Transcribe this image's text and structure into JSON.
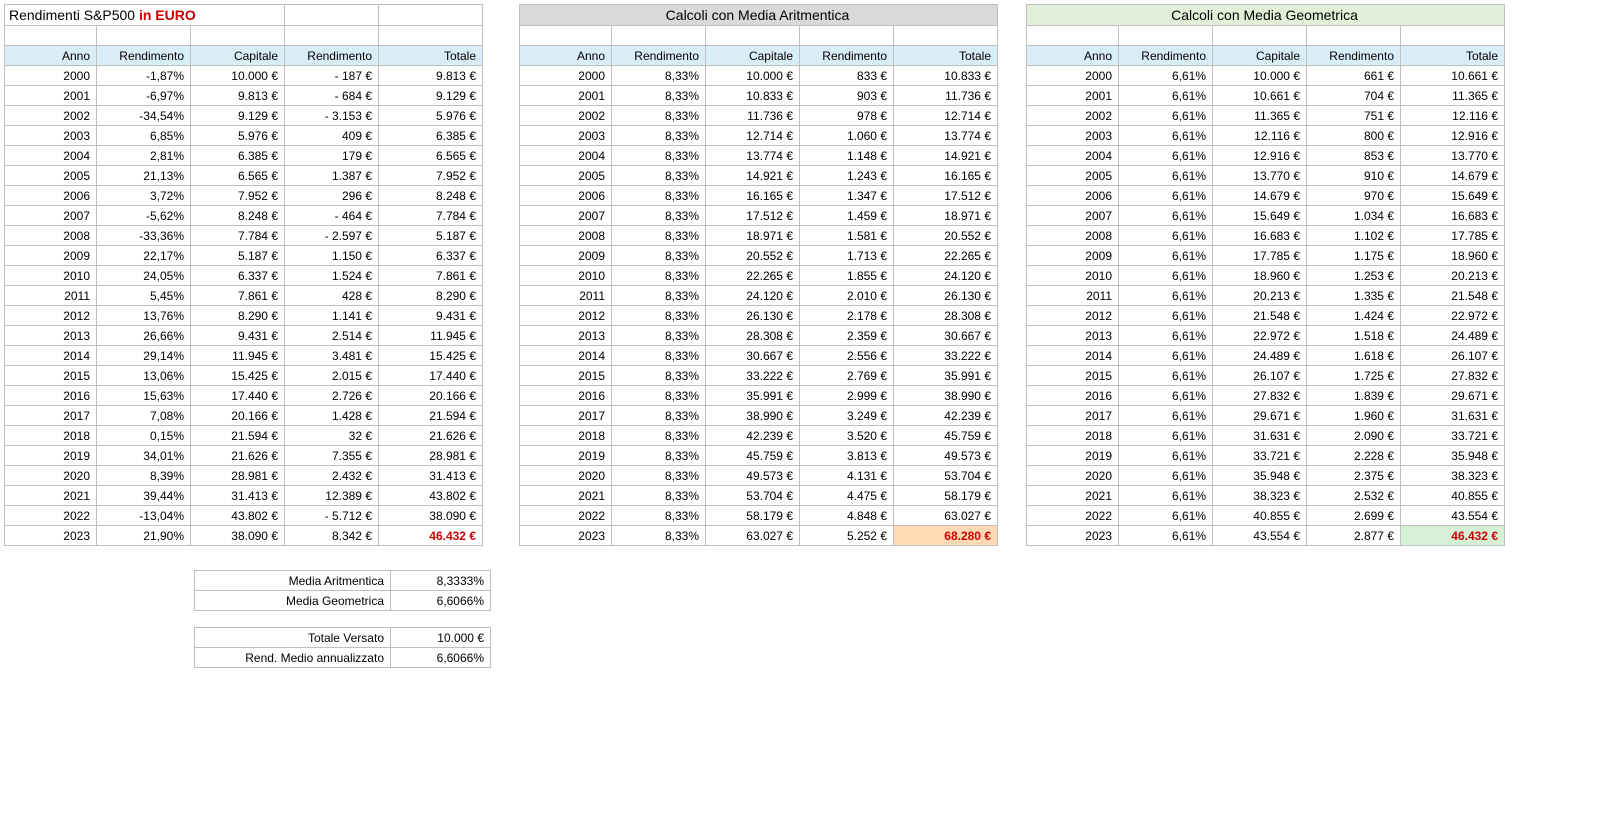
{
  "title_prefix": "Rendimenti S&P500 ",
  "title_suffix": "in EURO",
  "section_arit": "Calcoli con Media Aritmentica",
  "section_geo": "Calcoli con Media Geometrica",
  "columns": {
    "anno": "Anno",
    "rendimento": "Rendimento",
    "capitale": "Capitale",
    "rendimento2": "Rendimento",
    "totale": "Totale"
  },
  "table_real": {
    "final_highlight": "hl-red",
    "rows": [
      {
        "anno": "2000",
        "rend": "-1,87%",
        "cap": "10.000 €",
        "val": "-       187 €",
        "tot": "9.813 €"
      },
      {
        "anno": "2001",
        "rend": "-6,97%",
        "cap": "9.813 €",
        "val": "-       684 €",
        "tot": "9.129 €"
      },
      {
        "anno": "2002",
        "rend": "-34,54%",
        "cap": "9.129 €",
        "val": "-    3.153 €",
        "tot": "5.976 €"
      },
      {
        "anno": "2003",
        "rend": "6,85%",
        "cap": "5.976 €",
        "val": "409 €",
        "tot": "6.385 €"
      },
      {
        "anno": "2004",
        "rend": "2,81%",
        "cap": "6.385 €",
        "val": "179 €",
        "tot": "6.565 €"
      },
      {
        "anno": "2005",
        "rend": "21,13%",
        "cap": "6.565 €",
        "val": "1.387 €",
        "tot": "7.952 €"
      },
      {
        "anno": "2006",
        "rend": "3,72%",
        "cap": "7.952 €",
        "val": "296 €",
        "tot": "8.248 €"
      },
      {
        "anno": "2007",
        "rend": "-5,62%",
        "cap": "8.248 €",
        "val": "-       464 €",
        "tot": "7.784 €"
      },
      {
        "anno": "2008",
        "rend": "-33,36%",
        "cap": "7.784 €",
        "val": "-    2.597 €",
        "tot": "5.187 €"
      },
      {
        "anno": "2009",
        "rend": "22,17%",
        "cap": "5.187 €",
        "val": "1.150 €",
        "tot": "6.337 €"
      },
      {
        "anno": "2010",
        "rend": "24,05%",
        "cap": "6.337 €",
        "val": "1.524 €",
        "tot": "7.861 €"
      },
      {
        "anno": "2011",
        "rend": "5,45%",
        "cap": "7.861 €",
        "val": "428 €",
        "tot": "8.290 €"
      },
      {
        "anno": "2012",
        "rend": "13,76%",
        "cap": "8.290 €",
        "val": "1.141 €",
        "tot": "9.431 €"
      },
      {
        "anno": "2013",
        "rend": "26,66%",
        "cap": "9.431 €",
        "val": "2.514 €",
        "tot": "11.945 €"
      },
      {
        "anno": "2014",
        "rend": "29,14%",
        "cap": "11.945 €",
        "val": "3.481 €",
        "tot": "15.425 €"
      },
      {
        "anno": "2015",
        "rend": "13,06%",
        "cap": "15.425 €",
        "val": "2.015 €",
        "tot": "17.440 €"
      },
      {
        "anno": "2016",
        "rend": "15,63%",
        "cap": "17.440 €",
        "val": "2.726 €",
        "tot": "20.166 €"
      },
      {
        "anno": "2017",
        "rend": "7,08%",
        "cap": "20.166 €",
        "val": "1.428 €",
        "tot": "21.594 €"
      },
      {
        "anno": "2018",
        "rend": "0,15%",
        "cap": "21.594 €",
        "val": "32 €",
        "tot": "21.626 €"
      },
      {
        "anno": "2019",
        "rend": "34,01%",
        "cap": "21.626 €",
        "val": "7.355 €",
        "tot": "28.981 €"
      },
      {
        "anno": "2020",
        "rend": "8,39%",
        "cap": "28.981 €",
        "val": "2.432 €",
        "tot": "31.413 €"
      },
      {
        "anno": "2021",
        "rend": "39,44%",
        "cap": "31.413 €",
        "val": "12.389 €",
        "tot": "43.802 €"
      },
      {
        "anno": "2022",
        "rend": "-13,04%",
        "cap": "43.802 €",
        "val": "-    5.712 €",
        "tot": "38.090 €"
      },
      {
        "anno": "2023",
        "rend": "21,90%",
        "cap": "38.090 €",
        "val": "8.342 €",
        "tot": "46.432 €"
      }
    ]
  },
  "table_arit": {
    "final_highlight": "hl-orange",
    "rows": [
      {
        "anno": "2000",
        "rend": "8,33%",
        "cap": "10.000 €",
        "val": "833 €",
        "tot": "10.833 €"
      },
      {
        "anno": "2001",
        "rend": "8,33%",
        "cap": "10.833 €",
        "val": "903 €",
        "tot": "11.736 €"
      },
      {
        "anno": "2002",
        "rend": "8,33%",
        "cap": "11.736 €",
        "val": "978 €",
        "tot": "12.714 €"
      },
      {
        "anno": "2003",
        "rend": "8,33%",
        "cap": "12.714 €",
        "val": "1.060 €",
        "tot": "13.774 €"
      },
      {
        "anno": "2004",
        "rend": "8,33%",
        "cap": "13.774 €",
        "val": "1.148 €",
        "tot": "14.921 €"
      },
      {
        "anno": "2005",
        "rend": "8,33%",
        "cap": "14.921 €",
        "val": "1.243 €",
        "tot": "16.165 €"
      },
      {
        "anno": "2006",
        "rend": "8,33%",
        "cap": "16.165 €",
        "val": "1.347 €",
        "tot": "17.512 €"
      },
      {
        "anno": "2007",
        "rend": "8,33%",
        "cap": "17.512 €",
        "val": "1.459 €",
        "tot": "18.971 €"
      },
      {
        "anno": "2008",
        "rend": "8,33%",
        "cap": "18.971 €",
        "val": "1.581 €",
        "tot": "20.552 €"
      },
      {
        "anno": "2009",
        "rend": "8,33%",
        "cap": "20.552 €",
        "val": "1.713 €",
        "tot": "22.265 €"
      },
      {
        "anno": "2010",
        "rend": "8,33%",
        "cap": "22.265 €",
        "val": "1.855 €",
        "tot": "24.120 €"
      },
      {
        "anno": "2011",
        "rend": "8,33%",
        "cap": "24.120 €",
        "val": "2.010 €",
        "tot": "26.130 €"
      },
      {
        "anno": "2012",
        "rend": "8,33%",
        "cap": "26.130 €",
        "val": "2.178 €",
        "tot": "28.308 €"
      },
      {
        "anno": "2013",
        "rend": "8,33%",
        "cap": "28.308 €",
        "val": "2.359 €",
        "tot": "30.667 €"
      },
      {
        "anno": "2014",
        "rend": "8,33%",
        "cap": "30.667 €",
        "val": "2.556 €",
        "tot": "33.222 €"
      },
      {
        "anno": "2015",
        "rend": "8,33%",
        "cap": "33.222 €",
        "val": "2.769 €",
        "tot": "35.991 €"
      },
      {
        "anno": "2016",
        "rend": "8,33%",
        "cap": "35.991 €",
        "val": "2.999 €",
        "tot": "38.990 €"
      },
      {
        "anno": "2017",
        "rend": "8,33%",
        "cap": "38.990 €",
        "val": "3.249 €",
        "tot": "42.239 €"
      },
      {
        "anno": "2018",
        "rend": "8,33%",
        "cap": "42.239 €",
        "val": "3.520 €",
        "tot": "45.759 €"
      },
      {
        "anno": "2019",
        "rend": "8,33%",
        "cap": "45.759 €",
        "val": "3.813 €",
        "tot": "49.573 €"
      },
      {
        "anno": "2020",
        "rend": "8,33%",
        "cap": "49.573 €",
        "val": "4.131 €",
        "tot": "53.704 €"
      },
      {
        "anno": "2021",
        "rend": "8,33%",
        "cap": "53.704 €",
        "val": "4.475 €",
        "tot": "58.179 €"
      },
      {
        "anno": "2022",
        "rend": "8,33%",
        "cap": "58.179 €",
        "val": "4.848 €",
        "tot": "63.027 €"
      },
      {
        "anno": "2023",
        "rend": "8,33%",
        "cap": "63.027 €",
        "val": "5.252 €",
        "tot": "68.280 €"
      }
    ]
  },
  "table_geo": {
    "final_highlight": "hl-green",
    "rows": [
      {
        "anno": "2000",
        "rend": "6,61%",
        "cap": "10.000 €",
        "val": "661 €",
        "tot": "10.661 €"
      },
      {
        "anno": "2001",
        "rend": "6,61%",
        "cap": "10.661 €",
        "val": "704 €",
        "tot": "11.365 €"
      },
      {
        "anno": "2002",
        "rend": "6,61%",
        "cap": "11.365 €",
        "val": "751 €",
        "tot": "12.116 €"
      },
      {
        "anno": "2003",
        "rend": "6,61%",
        "cap": "12.116 €",
        "val": "800 €",
        "tot": "12.916 €"
      },
      {
        "anno": "2004",
        "rend": "6,61%",
        "cap": "12.916 €",
        "val": "853 €",
        "tot": "13.770 €"
      },
      {
        "anno": "2005",
        "rend": "6,61%",
        "cap": "13.770 €",
        "val": "910 €",
        "tot": "14.679 €"
      },
      {
        "anno": "2006",
        "rend": "6,61%",
        "cap": "14.679 €",
        "val": "970 €",
        "tot": "15.649 €"
      },
      {
        "anno": "2007",
        "rend": "6,61%",
        "cap": "15.649 €",
        "val": "1.034 €",
        "tot": "16.683 €"
      },
      {
        "anno": "2008",
        "rend": "6,61%",
        "cap": "16.683 €",
        "val": "1.102 €",
        "tot": "17.785 €"
      },
      {
        "anno": "2009",
        "rend": "6,61%",
        "cap": "17.785 €",
        "val": "1.175 €",
        "tot": "18.960 €"
      },
      {
        "anno": "2010",
        "rend": "6,61%",
        "cap": "18.960 €",
        "val": "1.253 €",
        "tot": "20.213 €"
      },
      {
        "anno": "2011",
        "rend": "6,61%",
        "cap": "20.213 €",
        "val": "1.335 €",
        "tot": "21.548 €"
      },
      {
        "anno": "2012",
        "rend": "6,61%",
        "cap": "21.548 €",
        "val": "1.424 €",
        "tot": "22.972 €"
      },
      {
        "anno": "2013",
        "rend": "6,61%",
        "cap": "22.972 €",
        "val": "1.518 €",
        "tot": "24.489 €"
      },
      {
        "anno": "2014",
        "rend": "6,61%",
        "cap": "24.489 €",
        "val": "1.618 €",
        "tot": "26.107 €"
      },
      {
        "anno": "2015",
        "rend": "6,61%",
        "cap": "26.107 €",
        "val": "1.725 €",
        "tot": "27.832 €"
      },
      {
        "anno": "2016",
        "rend": "6,61%",
        "cap": "27.832 €",
        "val": "1.839 €",
        "tot": "29.671 €"
      },
      {
        "anno": "2017",
        "rend": "6,61%",
        "cap": "29.671 €",
        "val": "1.960 €",
        "tot": "31.631 €"
      },
      {
        "anno": "2018",
        "rend": "6,61%",
        "cap": "31.631 €",
        "val": "2.090 €",
        "tot": "33.721 €"
      },
      {
        "anno": "2019",
        "rend": "6,61%",
        "cap": "33.721 €",
        "val": "2.228 €",
        "tot": "35.948 €"
      },
      {
        "anno": "2020",
        "rend": "6,61%",
        "cap": "35.948 €",
        "val": "2.375 €",
        "tot": "38.323 €"
      },
      {
        "anno": "2021",
        "rend": "6,61%",
        "cap": "38.323 €",
        "val": "2.532 €",
        "tot": "40.855 €"
      },
      {
        "anno": "2022",
        "rend": "6,61%",
        "cap": "40.855 €",
        "val": "2.699 €",
        "tot": "43.554 €"
      },
      {
        "anno": "2023",
        "rend": "6,61%",
        "cap": "43.554 €",
        "val": "2.877 €",
        "tot": "46.432 €"
      }
    ]
  },
  "summary": {
    "media_arit_label": "Media Aritmentica",
    "media_arit_value": "8,3333%",
    "media_geo_label": "Media Geometrica",
    "media_geo_value": "6,6066%",
    "totale_versato_label": "Totale Versato",
    "totale_versato_value": "10.000 €",
    "rend_medio_label": "Rend. Medio annualizzato",
    "rend_medio_value": "6,6066%"
  }
}
